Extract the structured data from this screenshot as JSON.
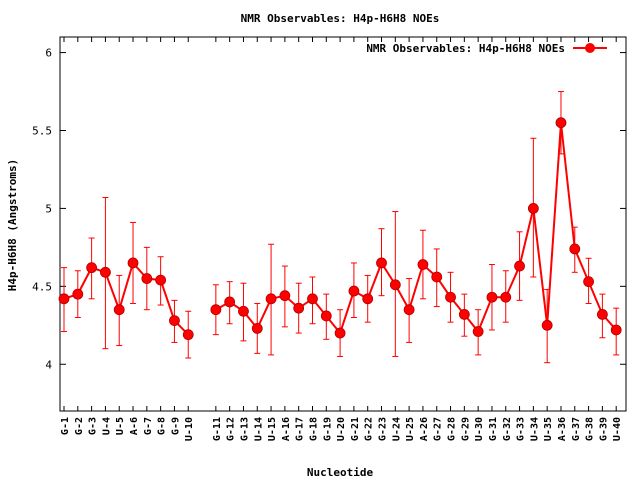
{
  "chart_data": {
    "type": "line",
    "title": "NMR Observables: H4p-H6H8 NOEs",
    "xlabel": "Nucleotide",
    "ylabel": "H4p-H6H8 (Angstroms)",
    "ylim": [
      3.7,
      6.1
    ],
    "yticks": [
      4,
      4.5,
      5,
      5.5,
      6
    ],
    "grid": false,
    "legend_position": "top-right",
    "series": [
      {
        "name": "NMR Observables: H4p-H6H8 NOEs",
        "color": "#ff0000",
        "marker": "circle",
        "points": [
          {
            "x": "G-1",
            "y": 4.42,
            "err_low": 4.21,
            "err_high": 4.62
          },
          {
            "x": "G-2",
            "y": 4.45,
            "err_low": 4.3,
            "err_high": 4.6
          },
          {
            "x": "G-3",
            "y": 4.62,
            "err_low": 4.42,
            "err_high": 4.81
          },
          {
            "x": "U-4",
            "y": 4.59,
            "err_low": 4.1,
            "err_high": 5.07
          },
          {
            "x": "U-5",
            "y": 4.35,
            "err_low": 4.12,
            "err_high": 4.57
          },
          {
            "x": "A-6",
            "y": 4.65,
            "err_low": 4.39,
            "err_high": 4.91
          },
          {
            "x": "G-7",
            "y": 4.55,
            "err_low": 4.35,
            "err_high": 4.75
          },
          {
            "x": "G-8",
            "y": 4.54,
            "err_low": 4.38,
            "err_high": 4.69
          },
          {
            "x": "G-9",
            "y": 4.28,
            "err_low": 4.14,
            "err_high": 4.41
          },
          {
            "x": "U-10",
            "y": 4.19,
            "err_low": 4.04,
            "err_high": 4.34
          },
          {
            "x": "",
            "y": null
          },
          {
            "x": "G-11",
            "y": 4.35,
            "err_low": 4.19,
            "err_high": 4.51
          },
          {
            "x": "G-12",
            "y": 4.4,
            "err_low": 4.26,
            "err_high": 4.53
          },
          {
            "x": "G-13",
            "y": 4.34,
            "err_low": 4.15,
            "err_high": 4.52
          },
          {
            "x": "U-14",
            "y": 4.23,
            "err_low": 4.07,
            "err_high": 4.39
          },
          {
            "x": "U-15",
            "y": 4.42,
            "err_low": 4.06,
            "err_high": 4.77
          },
          {
            "x": "A-16",
            "y": 4.44,
            "err_low": 4.24,
            "err_high": 4.63
          },
          {
            "x": "G-17",
            "y": 4.36,
            "err_low": 4.2,
            "err_high": 4.52
          },
          {
            "x": "G-18",
            "y": 4.42,
            "err_low": 4.26,
            "err_high": 4.56
          },
          {
            "x": "G-19",
            "y": 4.31,
            "err_low": 4.16,
            "err_high": 4.45
          },
          {
            "x": "U-20",
            "y": 4.2,
            "err_low": 4.05,
            "err_high": 4.35
          },
          {
            "x": "G-21",
            "y": 4.47,
            "err_low": 4.3,
            "err_high": 4.65
          },
          {
            "x": "G-22",
            "y": 4.42,
            "err_low": 4.27,
            "err_high": 4.57
          },
          {
            "x": "G-23",
            "y": 4.65,
            "err_low": 4.44,
            "err_high": 4.87
          },
          {
            "x": "U-24",
            "y": 4.51,
            "err_low": 4.05,
            "err_high": 4.98
          },
          {
            "x": "U-25",
            "y": 4.35,
            "err_low": 4.14,
            "err_high": 4.55
          },
          {
            "x": "A-26",
            "y": 4.64,
            "err_low": 4.42,
            "err_high": 4.86
          },
          {
            "x": "G-27",
            "y": 4.56,
            "err_low": 4.37,
            "err_high": 4.74
          },
          {
            "x": "G-28",
            "y": 4.43,
            "err_low": 4.27,
            "err_high": 4.59
          },
          {
            "x": "G-29",
            "y": 4.32,
            "err_low": 4.18,
            "err_high": 4.45
          },
          {
            "x": "U-30",
            "y": 4.21,
            "err_low": 4.06,
            "err_high": 4.35
          },
          {
            "x": "G-31",
            "y": 4.43,
            "err_low": 4.22,
            "err_high": 4.64
          },
          {
            "x": "G-32",
            "y": 4.43,
            "err_low": 4.27,
            "err_high": 4.6
          },
          {
            "x": "G-33",
            "y": 4.63,
            "err_low": 4.41,
            "err_high": 4.85
          },
          {
            "x": "U-34",
            "y": 5.0,
            "err_low": 4.56,
            "err_high": 5.45
          },
          {
            "x": "U-35",
            "y": 4.25,
            "err_low": 4.01,
            "err_high": 4.48
          },
          {
            "x": "A-36",
            "y": 5.55,
            "err_low": 5.35,
            "err_high": 5.75
          },
          {
            "x": "G-37",
            "y": 4.74,
            "err_low": 4.59,
            "err_high": 4.88
          },
          {
            "x": "G-38",
            "y": 4.53,
            "err_low": 4.39,
            "err_high": 4.68
          },
          {
            "x": "G-39",
            "y": 4.32,
            "err_low": 4.17,
            "err_high": 4.45
          },
          {
            "x": "U-40",
            "y": 4.22,
            "err_low": 4.06,
            "err_high": 4.36
          }
        ]
      }
    ]
  }
}
